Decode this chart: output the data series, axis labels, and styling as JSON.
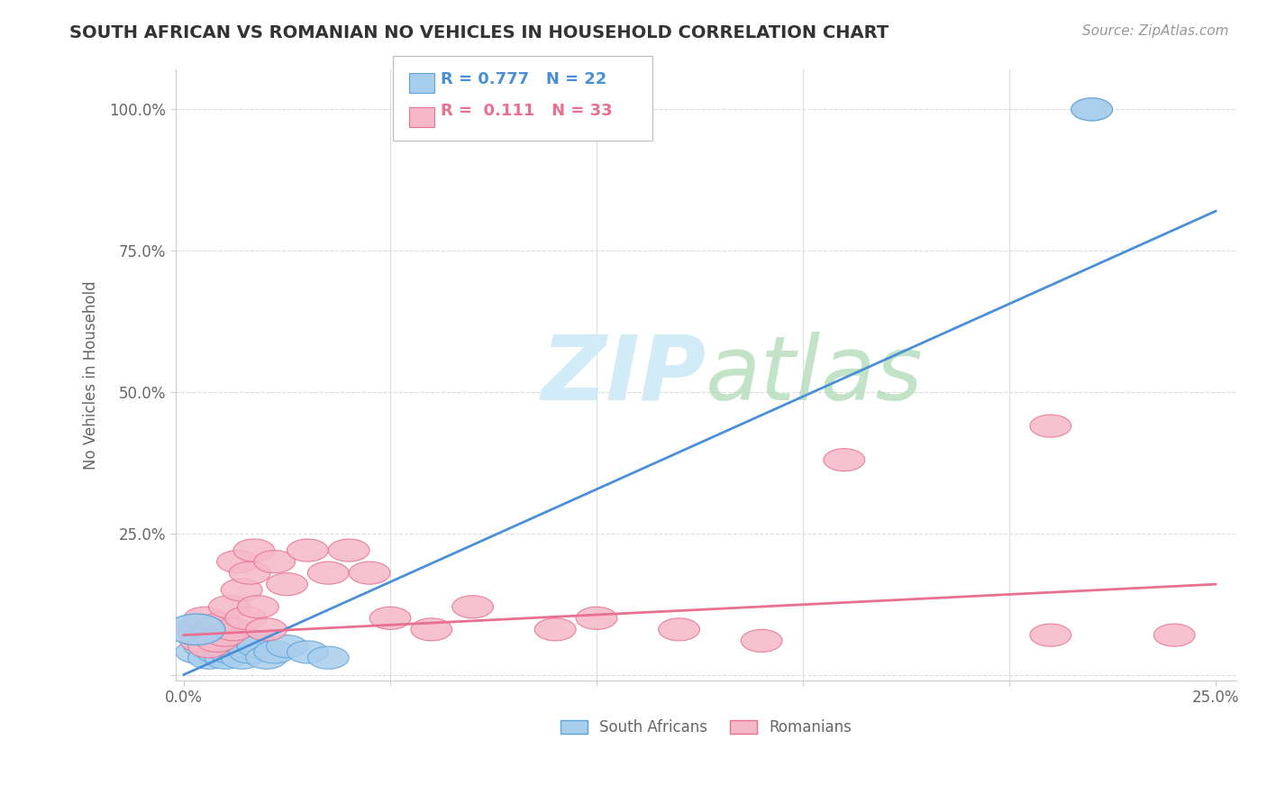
{
  "title": "SOUTH AFRICAN VS ROMANIAN NO VEHICLES IN HOUSEHOLD CORRELATION CHART",
  "source": "Source: ZipAtlas.com",
  "ylabel": "No Vehicles in Household",
  "xlim": [
    -0.002,
    0.255
  ],
  "ylim": [
    -0.01,
    1.07
  ],
  "xticks": [
    0.0,
    0.05,
    0.1,
    0.15,
    0.2,
    0.25
  ],
  "yticks": [
    0.0,
    0.25,
    0.5,
    0.75,
    1.0
  ],
  "xticklabels": [
    "0.0%",
    "",
    "",
    "",
    "",
    "25.0%"
  ],
  "yticklabels": [
    "",
    "25.0%",
    "50.0%",
    "75.0%",
    "100.0%"
  ],
  "blue_R": 0.777,
  "blue_N": 22,
  "pink_R": 0.111,
  "pink_N": 33,
  "blue_fill_color": "#A8CEED",
  "pink_fill_color": "#F5B8C8",
  "blue_edge_color": "#5BA3D9",
  "pink_edge_color": "#E87090",
  "blue_line_color": "#4A90D9",
  "pink_line_color": "#E87090",
  "watermark_color": "#CEEAF7",
  "background_color": "#FFFFFF",
  "grid_color": "#DDDDDD",
  "blue_scatter_x": [
    0.003,
    0.005,
    0.006,
    0.007,
    0.008,
    0.009,
    0.01,
    0.01,
    0.011,
    0.012,
    0.013,
    0.014,
    0.015,
    0.016,
    0.017,
    0.018,
    0.02,
    0.022,
    0.025,
    0.03,
    0.035,
    0.22
  ],
  "blue_scatter_y": [
    0.04,
    0.05,
    0.03,
    0.06,
    0.04,
    0.05,
    0.03,
    0.06,
    0.04,
    0.05,
    0.06,
    0.03,
    0.05,
    0.04,
    0.06,
    0.05,
    0.03,
    0.04,
    0.05,
    0.04,
    0.03,
    1.0
  ],
  "pink_scatter_x": [
    0.003,
    0.004,
    0.005,
    0.006,
    0.007,
    0.008,
    0.009,
    0.01,
    0.011,
    0.012,
    0.013,
    0.014,
    0.015,
    0.016,
    0.017,
    0.018,
    0.02,
    0.022,
    0.025,
    0.03,
    0.035,
    0.04,
    0.045,
    0.05,
    0.06,
    0.07,
    0.09,
    0.1,
    0.12,
    0.14,
    0.16,
    0.21,
    0.24
  ],
  "pink_scatter_y": [
    0.08,
    0.06,
    0.1,
    0.05,
    0.08,
    0.06,
    0.09,
    0.07,
    0.12,
    0.08,
    0.2,
    0.15,
    0.1,
    0.18,
    0.22,
    0.12,
    0.08,
    0.2,
    0.16,
    0.22,
    0.18,
    0.22,
    0.18,
    0.1,
    0.08,
    0.12,
    0.08,
    0.1,
    0.08,
    0.06,
    0.38,
    0.07,
    0.07
  ],
  "blue_line_x": [
    0.0,
    0.25
  ],
  "blue_line_y": [
    0.0,
    0.82
  ],
  "pink_line_x": [
    0.0,
    0.25
  ],
  "pink_line_y": [
    0.07,
    0.16
  ],
  "legend_R_blue": "R = 0.777",
  "legend_N_blue": "N = 22",
  "legend_R_pink": "R =  0.111",
  "legend_N_pink": "N = 33"
}
